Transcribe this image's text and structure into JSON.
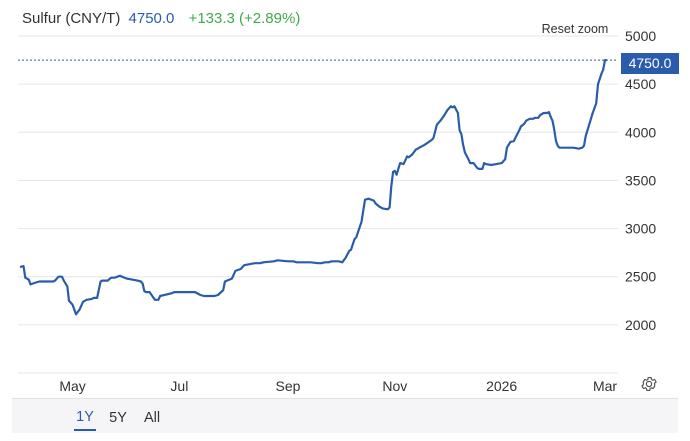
{
  "header": {
    "instrument": "Sulfur (CNY/T)",
    "price": "4750.0",
    "change": "+133.3 (+2.89%)"
  },
  "controls": {
    "reset_zoom": "Reset zoom",
    "settings_icon": "gear-icon"
  },
  "range_buttons": [
    {
      "label": "1Y",
      "active": true
    },
    {
      "label": "5Y",
      "active": false
    },
    {
      "label": "All",
      "active": false
    }
  ],
  "colors": {
    "line": "#2a5cab",
    "change_positive": "#3fa94b",
    "price_badge": "#2a5cab",
    "grid": "#e6e6e6"
  },
  "chart_data": {
    "type": "line",
    "title": "Sulfur (CNY/T)",
    "last_value_label": "4750.0",
    "ylim": [
      1500,
      5000
    ],
    "yticks": [
      2000,
      2500,
      3000,
      3500,
      4000,
      4500,
      5000
    ],
    "xlim": [
      0,
      334
    ],
    "xticks": [
      {
        "label": "May",
        "x": 30
      },
      {
        "label": "Jul",
        "x": 91
      },
      {
        "label": "Sep",
        "x": 153
      },
      {
        "label": "Nov",
        "x": 214
      },
      {
        "label": "2026",
        "x": 275
      },
      {
        "label": "Mar",
        "x": 334
      }
    ],
    "grid": true,
    "legend": "none",
    "series": [
      {
        "x": [
          0,
          2,
          3,
          5,
          6,
          9,
          11,
          15,
          16,
          19,
          20,
          22,
          24,
          25,
          26,
          27,
          28,
          30,
          32,
          34,
          36,
          38,
          41,
          42,
          44,
          46,
          47,
          50,
          52,
          54,
          57,
          61,
          64,
          67,
          69,
          70,
          71,
          72,
          74,
          77,
          79,
          80,
          87,
          88,
          90,
          92,
          98,
          100,
          103,
          105,
          106,
          109,
          111,
          113,
          116,
          117,
          121,
          123,
          126,
          128,
          134,
          137,
          139,
          145,
          147,
          153,
          155,
          156,
          158,
          162,
          166,
          170,
          172,
          174,
          176,
          178,
          182,
          184,
          186,
          188,
          189,
          191,
          192,
          195,
          197,
          199,
          202,
          203,
          205,
          207,
          210,
          211,
          212,
          213,
          214,
          215,
          216,
          217,
          219,
          221,
          222,
          224,
          226,
          227,
          229,
          230,
          231,
          235,
          236,
          238,
          240,
          242,
          244,
          246,
          247,
          248,
          250,
          251,
          252,
          253,
          254,
          256,
          257,
          259,
          261,
          262,
          263,
          264,
          265,
          266,
          269,
          272,
          275,
          276,
          277,
          278,
          280,
          282,
          283,
          285,
          286,
          288,
          289,
          291,
          293,
          294,
          296,
          297,
          299,
          301,
          302,
          303,
          304,
          305,
          306,
          307,
          308,
          310,
          313,
          316,
          319,
          321,
          322,
          323,
          325,
          327,
          329,
          330,
          332,
          333,
          334,
          335
        ],
        "y": [
          2600,
          2610,
          2490,
          2470,
          2420,
          2440,
          2450,
          2450,
          2450,
          2450,
          2460,
          2500,
          2500,
          2460,
          2430,
          2400,
          2250,
          2210,
          2110,
          2160,
          2240,
          2260,
          2270,
          2280,
          2280,
          2450,
          2460,
          2460,
          2490,
          2490,
          2510,
          2480,
          2470,
          2460,
          2450,
          2430,
          2350,
          2340,
          2340,
          2260,
          2260,
          2300,
          2330,
          2340,
          2340,
          2340,
          2340,
          2340,
          2310,
          2300,
          2300,
          2300,
          2300,
          2310,
          2360,
          2450,
          2480,
          2560,
          2580,
          2620,
          2640,
          2640,
          2650,
          2660,
          2670,
          2660,
          2660,
          2660,
          2650,
          2650,
          2650,
          2640,
          2640,
          2650,
          2650,
          2660,
          2660,
          2650,
          2700,
          2770,
          2780,
          2890,
          2910,
          3070,
          3300,
          3310,
          3290,
          3260,
          3230,
          3210,
          3200,
          3220,
          3440,
          3590,
          3600,
          3560,
          3620,
          3680,
          3670,
          3750,
          3740,
          3770,
          3820,
          3830,
          3850,
          3860,
          3870,
          3920,
          3940,
          4080,
          4120,
          4170,
          4230,
          4270,
          4260,
          4270,
          4200,
          4020,
          3980,
          3870,
          3790,
          3720,
          3680,
          3680,
          3630,
          3620,
          3620,
          3620,
          3680,
          3670,
          3660,
          3670,
          3680,
          3700,
          3720,
          3840,
          3900,
          3910,
          3950,
          4020,
          4060,
          4090,
          4120,
          4140,
          4140,
          4150,
          4150,
          4180,
          4200,
          4200,
          4210,
          4160,
          4120,
          4030,
          3910,
          3860,
          3840,
          3840,
          3840,
          3840,
          3830,
          3840,
          3860,
          3960,
          4080,
          4200,
          4300,
          4500,
          4610,
          4650,
          4750,
          4750
        ]
      }
    ]
  }
}
